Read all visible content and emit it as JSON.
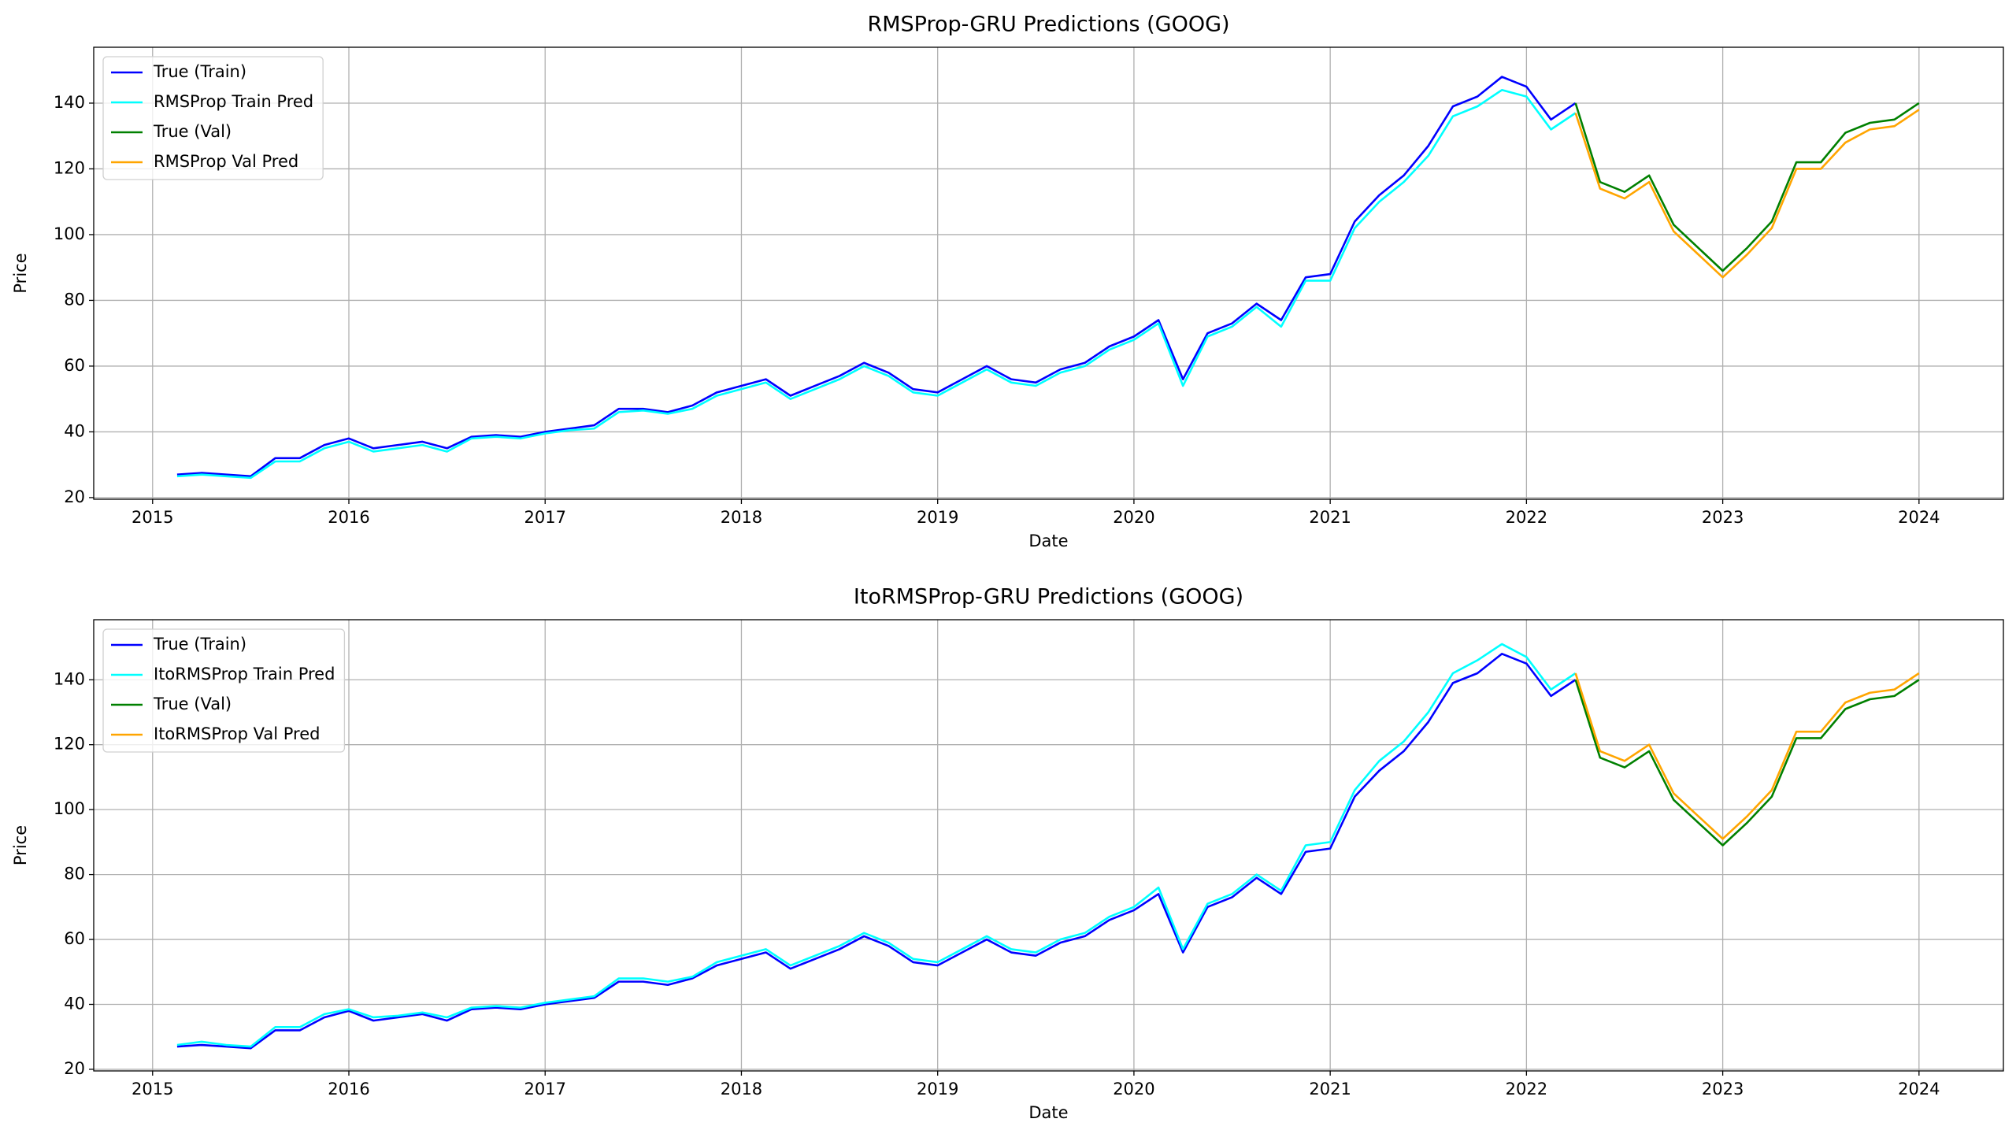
{
  "chart_data": [
    {
      "type": "line",
      "title": "RMSProp-GRU Predictions (GOOG)",
      "xlabel": "Date",
      "ylabel": "Price",
      "x": [
        2015.125,
        2015.25,
        2015.375,
        2015.5,
        2015.625,
        2015.75,
        2015.875,
        2016.0,
        2016.125,
        2016.25,
        2016.375,
        2016.5,
        2016.625,
        2016.75,
        2016.875,
        2017.0,
        2017.125,
        2017.25,
        2017.375,
        2017.5,
        2017.625,
        2017.75,
        2017.875,
        2018.0,
        2018.125,
        2018.25,
        2018.375,
        2018.5,
        2018.625,
        2018.75,
        2018.875,
        2019.0,
        2019.125,
        2019.25,
        2019.375,
        2019.5,
        2019.625,
        2019.75,
        2019.875,
        2020.0,
        2020.125,
        2020.25,
        2020.375,
        2020.5,
        2020.625,
        2020.75,
        2020.875,
        2021.0,
        2021.125,
        2021.25,
        2021.375,
        2021.5,
        2021.625,
        2021.75,
        2021.875,
        2022.0,
        2022.125,
        2022.25,
        2022.375,
        2022.5,
        2022.625,
        2022.75,
        2022.875,
        2023.0,
        2023.125,
        2023.25,
        2023.375,
        2023.5,
        2023.625,
        2023.75,
        2023.875,
        2024.0
      ],
      "series": [
        {
          "name": "True (Train)",
          "color": "#0000ff",
          "values": [
            27,
            27.5,
            27,
            26.5,
            32,
            32,
            36,
            38,
            35,
            36,
            37,
            35,
            38.5,
            39,
            38.5,
            40,
            41,
            42,
            47,
            47,
            46,
            48,
            52,
            54,
            56,
            51,
            54,
            57,
            61,
            58,
            53,
            52,
            56,
            60,
            56,
            55,
            59,
            61,
            66,
            69,
            74,
            56,
            70,
            73,
            79,
            74,
            87,
            88,
            104,
            112,
            118,
            127,
            139,
            142,
            148,
            145,
            135,
            140,
            null,
            null,
            null,
            null,
            null,
            null,
            null,
            null,
            null,
            null,
            null,
            null,
            null,
            null
          ]
        },
        {
          "name": "RMSProp Train Pred",
          "color": "#00ffff",
          "values": [
            26.5,
            27,
            26.5,
            26,
            31,
            31,
            35,
            37,
            34,
            35,
            36,
            34,
            38,
            38.5,
            38,
            39.5,
            40.5,
            41,
            46,
            46.5,
            45.5,
            47,
            51,
            53,
            55,
            50,
            53,
            56,
            60,
            57,
            52,
            51,
            55,
            59,
            55,
            54,
            58,
            60,
            65,
            68,
            73,
            54,
            69,
            72,
            78,
            72,
            86,
            86,
            102,
            110,
            116,
            124,
            136,
            139,
            144,
            142,
            132,
            137,
            null,
            null,
            null,
            null,
            null,
            null,
            null,
            null,
            null,
            null,
            null,
            null,
            null,
            null
          ]
        },
        {
          "name": "True (Val)",
          "color": "#008000",
          "values": [
            null,
            null,
            null,
            null,
            null,
            null,
            null,
            null,
            null,
            null,
            null,
            null,
            null,
            null,
            null,
            null,
            null,
            null,
            null,
            null,
            null,
            null,
            null,
            null,
            null,
            null,
            null,
            null,
            null,
            null,
            null,
            null,
            null,
            null,
            null,
            null,
            null,
            null,
            null,
            null,
            null,
            null,
            null,
            null,
            null,
            null,
            null,
            null,
            null,
            null,
            null,
            null,
            null,
            null,
            null,
            null,
            null,
            140,
            116,
            113,
            118,
            103,
            96,
            89,
            96,
            104,
            122,
            122,
            131,
            134,
            135,
            140
          ]
        },
        {
          "name": "RMSProp Val Pred",
          "color": "#ffa500",
          "values": [
            null,
            null,
            null,
            null,
            null,
            null,
            null,
            null,
            null,
            null,
            null,
            null,
            null,
            null,
            null,
            null,
            null,
            null,
            null,
            null,
            null,
            null,
            null,
            null,
            null,
            null,
            null,
            null,
            null,
            null,
            null,
            null,
            null,
            null,
            null,
            null,
            null,
            null,
            null,
            null,
            null,
            null,
            null,
            null,
            null,
            null,
            null,
            null,
            null,
            null,
            null,
            null,
            null,
            null,
            null,
            null,
            null,
            137,
            114,
            111,
            116,
            101,
            94,
            87,
            94,
            102,
            120,
            120,
            128,
            132,
            133,
            138
          ]
        }
      ],
      "xlim": [
        2014.7,
        2024.43
      ],
      "ylim": [
        19.5,
        157
      ],
      "xticks": [
        2015,
        2016,
        2017,
        2018,
        2019,
        2020,
        2021,
        2022,
        2023,
        2024
      ],
      "yticks": [
        20,
        40,
        60,
        80,
        100,
        120,
        140
      ],
      "grid": true,
      "legend": "upper left"
    },
    {
      "type": "line",
      "title": "ItoRMSProp-GRU Predictions (GOOG)",
      "xlabel": "Date",
      "ylabel": "Price",
      "x": [
        2015.125,
        2015.25,
        2015.375,
        2015.5,
        2015.625,
        2015.75,
        2015.875,
        2016.0,
        2016.125,
        2016.25,
        2016.375,
        2016.5,
        2016.625,
        2016.75,
        2016.875,
        2017.0,
        2017.125,
        2017.25,
        2017.375,
        2017.5,
        2017.625,
        2017.75,
        2017.875,
        2018.0,
        2018.125,
        2018.25,
        2018.375,
        2018.5,
        2018.625,
        2018.75,
        2018.875,
        2019.0,
        2019.125,
        2019.25,
        2019.375,
        2019.5,
        2019.625,
        2019.75,
        2019.875,
        2020.0,
        2020.125,
        2020.25,
        2020.375,
        2020.5,
        2020.625,
        2020.75,
        2020.875,
        2021.0,
        2021.125,
        2021.25,
        2021.375,
        2021.5,
        2021.625,
        2021.75,
        2021.875,
        2022.0,
        2022.125,
        2022.25,
        2022.375,
        2022.5,
        2022.625,
        2022.75,
        2022.875,
        2023.0,
        2023.125,
        2023.25,
        2023.375,
        2023.5,
        2023.625,
        2023.75,
        2023.875,
        2024.0
      ],
      "series": [
        {
          "name": "True (Train)",
          "color": "#0000ff",
          "values": [
            27,
            27.5,
            27,
            26.5,
            32,
            32,
            36,
            38,
            35,
            36,
            37,
            35,
            38.5,
            39,
            38.5,
            40,
            41,
            42,
            47,
            47,
            46,
            48,
            52,
            54,
            56,
            51,
            54,
            57,
            61,
            58,
            53,
            52,
            56,
            60,
            56,
            55,
            59,
            61,
            66,
            69,
            74,
            56,
            70,
            73,
            79,
            74,
            87,
            88,
            104,
            112,
            118,
            127,
            139,
            142,
            148,
            145,
            135,
            140,
            null,
            null,
            null,
            null,
            null,
            null,
            null,
            null,
            null,
            null,
            null,
            null,
            null,
            null
          ]
        },
        {
          "name": "ItoRMSProp Train Pred",
          "color": "#00ffff",
          "values": [
            27.5,
            28.5,
            27.5,
            27,
            33,
            33,
            37,
            38.5,
            36,
            36.5,
            37.5,
            36,
            39,
            39.5,
            39,
            40.5,
            41.5,
            42.5,
            48,
            48,
            47,
            48.5,
            53,
            55,
            57,
            52,
            55,
            58,
            62,
            59,
            54,
            53,
            57,
            61,
            57,
            56,
            60,
            62,
            67,
            70,
            76,
            57,
            71,
            74,
            80,
            75,
            89,
            90,
            106,
            115,
            121,
            130,
            142,
            146,
            151,
            147,
            137,
            142,
            null,
            null,
            null,
            null,
            null,
            null,
            null,
            null,
            null,
            null,
            null,
            null,
            null,
            null
          ]
        },
        {
          "name": "True (Val)",
          "color": "#008000",
          "values": [
            null,
            null,
            null,
            null,
            null,
            null,
            null,
            null,
            null,
            null,
            null,
            null,
            null,
            null,
            null,
            null,
            null,
            null,
            null,
            null,
            null,
            null,
            null,
            null,
            null,
            null,
            null,
            null,
            null,
            null,
            null,
            null,
            null,
            null,
            null,
            null,
            null,
            null,
            null,
            null,
            null,
            null,
            null,
            null,
            null,
            null,
            null,
            null,
            null,
            null,
            null,
            null,
            null,
            null,
            null,
            null,
            null,
            140,
            116,
            113,
            118,
            103,
            96,
            89,
            96,
            104,
            122,
            122,
            131,
            134,
            135,
            140
          ]
        },
        {
          "name": "ItoRMSProp Val Pred",
          "color": "#ffa500",
          "values": [
            null,
            null,
            null,
            null,
            null,
            null,
            null,
            null,
            null,
            null,
            null,
            null,
            null,
            null,
            null,
            null,
            null,
            null,
            null,
            null,
            null,
            null,
            null,
            null,
            null,
            null,
            null,
            null,
            null,
            null,
            null,
            null,
            null,
            null,
            null,
            null,
            null,
            null,
            null,
            null,
            null,
            null,
            null,
            null,
            null,
            null,
            null,
            null,
            null,
            null,
            null,
            null,
            null,
            null,
            null,
            null,
            null,
            142,
            118,
            115,
            120,
            105,
            98,
            91,
            98,
            106,
            124,
            124,
            133,
            136,
            137,
            142
          ]
        }
      ],
      "xlim": [
        2014.7,
        2024.43
      ],
      "ylim": [
        19.5,
        158.5
      ],
      "xticks": [
        2015,
        2016,
        2017,
        2018,
        2019,
        2020,
        2021,
        2022,
        2023,
        2024
      ],
      "yticks": [
        20,
        40,
        60,
        80,
        100,
        120,
        140
      ],
      "grid": true,
      "legend": "upper left"
    }
  ]
}
